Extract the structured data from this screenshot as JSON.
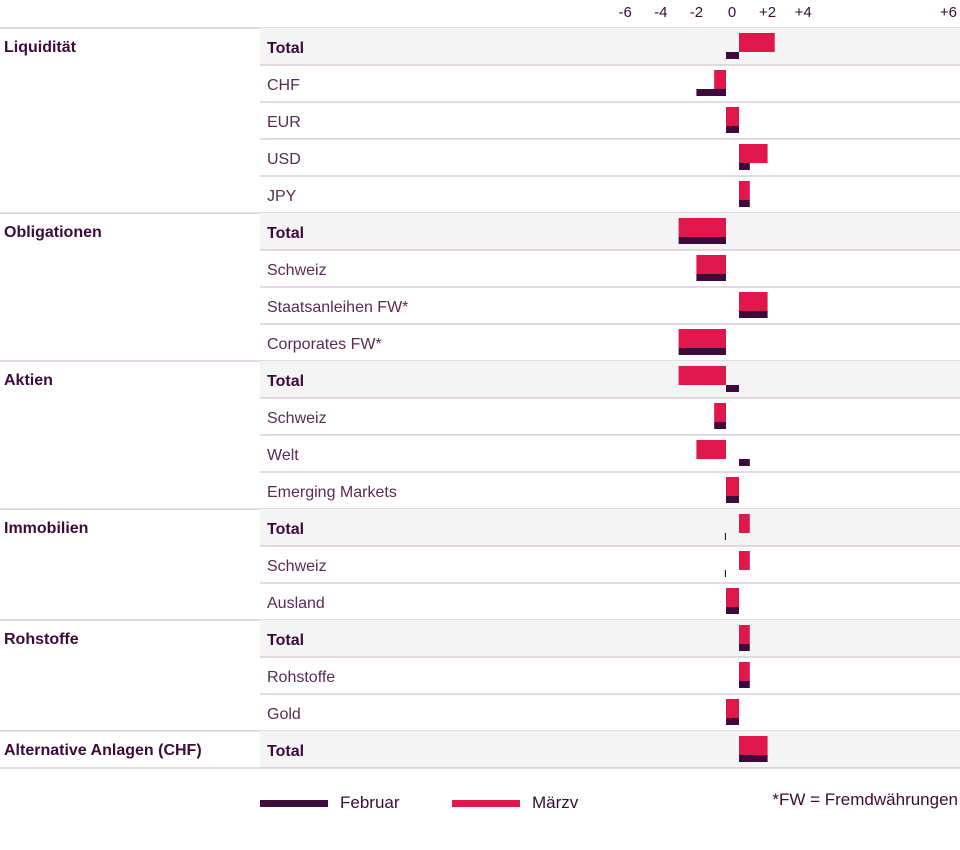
{
  "colors": {
    "februar": "#3d0a3c",
    "maerz": "#e0174a",
    "grid": "#c9b3c8",
    "total_bg": "#f4f4f4"
  },
  "legend": {
    "februar": "Februar",
    "maerz": "Märzv",
    "footnote": "*FW = Fremdwährungen"
  },
  "chart_data": {
    "type": "bar",
    "orientation": "horizontal",
    "xlim": [
      -6,
      6
    ],
    "ticks": [
      "-6",
      "-4",
      "-2",
      "0",
      "+2",
      "+4",
      "+6"
    ],
    "tick_values": [
      -6,
      -4,
      -2,
      0,
      2,
      4,
      6
    ],
    "series_names": [
      "Februar",
      "Märzv"
    ],
    "groups": [
      {
        "name": "Liquidität",
        "rows": [
          {
            "label": "Total",
            "total": true,
            "februar": 0.4,
            "maerz": 2.4
          },
          {
            "label": "CHF",
            "februar": -2,
            "maerz": -1
          },
          {
            "label": "EUR",
            "februar": 0.4,
            "maerz": 0.4
          },
          {
            "label": "USD",
            "februar": 1,
            "maerz": 2
          },
          {
            "label": "JPY",
            "februar": 1,
            "maerz": 1
          }
        ]
      },
      {
        "name": "Obligationen",
        "rows": [
          {
            "label": "Total",
            "total": true,
            "februar": -3,
            "maerz": -3
          },
          {
            "label": "Schweiz",
            "februar": -2,
            "maerz": -2
          },
          {
            "label": "Staatsanleihen FW*",
            "februar": 2,
            "maerz": 2
          },
          {
            "label": "Corporates FW*",
            "februar": -3,
            "maerz": -3
          }
        ]
      },
      {
        "name": "Aktien",
        "rows": [
          {
            "label": "Total",
            "total": true,
            "februar": 0.4,
            "maerz": -3
          },
          {
            "label": "Schweiz",
            "februar": -1,
            "maerz": -1
          },
          {
            "label": "Welt",
            "februar": 1,
            "maerz": -2
          },
          {
            "label": "Emerging Markets",
            "februar": 0.4,
            "maerz": 0.4
          }
        ]
      },
      {
        "name": "Immobilien",
        "rows": [
          {
            "label": "Total",
            "total": true,
            "februar": -0.4,
            "maerz": 1
          },
          {
            "label": "Schweiz",
            "februar": -0.4,
            "maerz": 1
          },
          {
            "label": "Ausland",
            "februar": 0.4,
            "maerz": 0.4
          }
        ]
      },
      {
        "name": "Rohstoffe",
        "rows": [
          {
            "label": "Total",
            "total": true,
            "februar": 1,
            "maerz": 1
          },
          {
            "label": "Rohstoffe",
            "februar": 1,
            "maerz": 1
          },
          {
            "label": "Gold",
            "februar": 0.4,
            "maerz": 0.4
          }
        ]
      },
      {
        "name": "Alternative Anlagen (CHF)",
        "rows": [
          {
            "label": "Total",
            "total": true,
            "februar": 2,
            "maerz": 2
          }
        ]
      }
    ]
  }
}
